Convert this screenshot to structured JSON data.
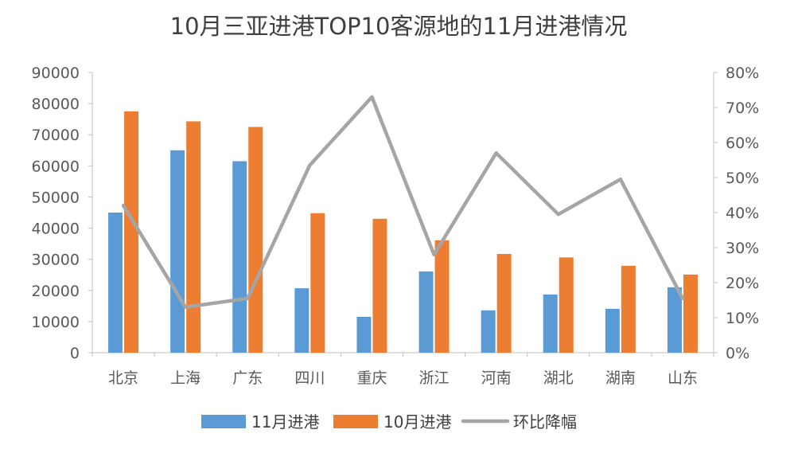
{
  "chart_data": {
    "type": "bar",
    "title": "10月三亚进港TOP10客源地的11月进港情况",
    "categories": [
      "北京",
      "上海",
      "广东",
      "四川",
      "重庆",
      "浙江",
      "河南",
      "湖北",
      "湖南",
      "山东"
    ],
    "series": [
      {
        "name": "11月进港",
        "type": "bar",
        "axis": "left",
        "color": "#5b9bd5",
        "values": [
          45000,
          65000,
          61500,
          20700,
          11500,
          26100,
          13600,
          18700,
          14100,
          21000
        ]
      },
      {
        "name": "10月进港",
        "type": "bar",
        "axis": "left",
        "color": "#ed7d31",
        "values": [
          77500,
          74300,
          72500,
          44800,
          43000,
          36100,
          31700,
          30600,
          27900,
          25100
        ]
      },
      {
        "name": "环比降幅",
        "type": "line",
        "axis": "right",
        "color": "#a5a5a5",
        "values": [
          42,
          13,
          15.5,
          53.5,
          73,
          28,
          57,
          39.5,
          49.5,
          15.5
        ]
      }
    ],
    "y_left": {
      "min": 0,
      "max": 90000,
      "step": 10000,
      "ticks": [
        "0",
        "10000",
        "20000",
        "30000",
        "40000",
        "50000",
        "60000",
        "70000",
        "80000",
        "90000"
      ]
    },
    "y_right": {
      "min": 0,
      "max": 80,
      "step": 10,
      "ticks": [
        "0%",
        "10%",
        "20%",
        "30%",
        "40%",
        "50%",
        "60%",
        "70%",
        "80%"
      ]
    },
    "legend_position": "bottom",
    "grid": false
  }
}
